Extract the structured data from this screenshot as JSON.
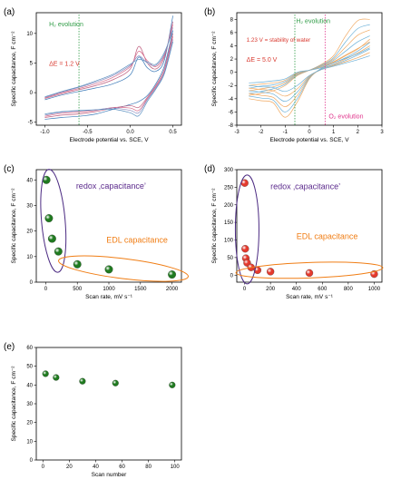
{
  "colors": {
    "green_marker": "#1f7a1f",
    "red_marker": "#e53a2e",
    "purple_ellipse": "#4b2a82",
    "orange_ellipse": "#f07d14",
    "green_line": "#2e9b45",
    "red_line": "#e0338b",
    "annotation_red": "#d9392f",
    "annotation_green": "#2e9b45",
    "annotation_purple": "#5b2a8c",
    "annotation_orange": "#f07d14",
    "cv_a": [
      "#3d7ab8",
      "#c06080",
      "#d86a8a",
      "#8d8dbf",
      "#5a90c0"
    ],
    "cv_b_orange": "#f0a860",
    "cv_b_blue": "#6bb0d8"
  },
  "chart_data": [
    {
      "panel": "(a)",
      "type": "line",
      "title": "",
      "xlabel": "Electrode potential vs. SCE, V",
      "ylabel": "Specific capacitance, F cm⁻²",
      "xlim": [
        -1.1,
        0.6
      ],
      "ylim": [
        -5.5,
        13.5
      ],
      "xticks": [
        -1.0,
        -0.5,
        0.0,
        0.5
      ],
      "xticklabels": [
        "-1.0",
        "-0.5",
        "0.0",
        "0.5"
      ],
      "yticks": [
        -5,
        0,
        5,
        10
      ],
      "yticklabels": [
        "-5",
        "0",
        "5",
        "10"
      ],
      "vline_x": -0.6,
      "annotations": [
        "H₂ evolution",
        "ΔE = 1.2 V"
      ],
      "series": [
        {
          "x": [
            -1.0,
            -0.8,
            -0.6,
            -0.4,
            -0.2,
            0.0,
            0.1,
            0.2,
            0.3,
            0.4,
            0.5
          ],
          "y_fwd": [
            -1.2,
            -0.4,
            0.2,
            0.8,
            1.5,
            3.0,
            6.0,
            4.2,
            3.6,
            5.5,
            13.0
          ],
          "y_rev": [
            -4.5,
            -4.2,
            -4.0,
            -3.6,
            -2.8,
            -2.0,
            -1.5,
            -0.5,
            1.5,
            4.5,
            10.5
          ]
        },
        {
          "x": [
            -1.0,
            -0.8,
            -0.6,
            -0.4,
            -0.2,
            0.0,
            0.1,
            0.2,
            0.3,
            0.4,
            0.5
          ],
          "y_fwd": [
            -1.0,
            -0.2,
            0.5,
            1.2,
            2.2,
            4.0,
            7.8,
            5.0,
            4.0,
            6.0,
            12.0
          ],
          "y_rev": [
            -4.2,
            -3.8,
            -3.6,
            -3.2,
            -2.6,
            -2.2,
            -2.5,
            -0.8,
            1.2,
            4.0,
            10.0
          ]
        },
        {
          "x": [
            -1.0,
            -0.8,
            -0.6,
            -0.4,
            -0.2,
            0.0,
            0.1,
            0.2,
            0.3,
            0.4,
            0.5
          ],
          "y_fwd": [
            -0.9,
            0.0,
            0.7,
            1.5,
            2.6,
            4.4,
            7.0,
            5.4,
            4.4,
            6.3,
            11.5
          ],
          "y_rev": [
            -4.0,
            -3.5,
            -3.3,
            -3.0,
            -2.5,
            -2.6,
            -3.0,
            -1.0,
            1.0,
            3.6,
            9.5
          ]
        },
        {
          "x": [
            -1.0,
            -0.8,
            -0.6,
            -0.4,
            -0.2,
            0.0,
            0.1,
            0.2,
            0.3,
            0.4,
            0.5
          ],
          "y_fwd": [
            -0.8,
            0.1,
            0.9,
            1.8,
            2.9,
            4.6,
            6.2,
            5.0,
            4.6,
            6.5,
            11.0
          ],
          "y_rev": [
            -3.8,
            -3.3,
            -3.1,
            -2.9,
            -2.6,
            -3.0,
            -3.4,
            -1.2,
            0.8,
            3.4,
            9.0
          ]
        },
        {
          "x": [
            -1.0,
            -0.8,
            -0.6,
            -0.4,
            -0.2,
            0.0,
            0.1,
            0.2,
            0.3,
            0.4,
            0.5
          ],
          "y_fwd": [
            -0.7,
            0.2,
            1.0,
            2.0,
            3.1,
            4.8,
            5.6,
            5.2,
            4.8,
            6.8,
            10.5
          ],
          "y_rev": [
            -3.6,
            -3.2,
            -3.0,
            -2.9,
            -2.8,
            -3.4,
            -3.9,
            -1.5,
            0.6,
            3.2,
            8.6
          ]
        }
      ]
    },
    {
      "panel": "(b)",
      "type": "line",
      "title": "",
      "xlabel": "Electrode potential vs. SCE, V",
      "ylabel": "Specific capacitance, F cm⁻²",
      "xlim": [
        -3,
        3
      ],
      "ylim": [
        -8,
        9
      ],
      "xticks": [
        -3,
        -2,
        -1,
        0,
        1,
        2,
        3
      ],
      "xticklabels": [
        "-3",
        "-2",
        "-1",
        "0",
        "1",
        "2",
        "3"
      ],
      "yticks": [
        -8,
        -6,
        -4,
        -2,
        0,
        2,
        4,
        6,
        8
      ],
      "yticklabels": [
        "-8",
        "-6",
        "-4",
        "-2",
        "0",
        "2",
        "4",
        "6",
        "8"
      ],
      "vlines_x": [
        -0.6,
        0.65
      ],
      "annotations": [
        "H₂ evolution",
        "1.23 V = stability of water",
        "ΔE = 5.0 V",
        "O₂ evolution"
      ],
      "series": [
        {
          "x": [
            -2.5,
            -2.0,
            -1.5,
            -1.0,
            -0.5,
            0.0,
            0.5,
            1.0,
            1.5,
            2.0,
            2.5
          ],
          "y_fwd": [
            -3.5,
            -3.2,
            -2.8,
            -2.0,
            -0.5,
            0.3,
            1.2,
            2.5,
            5.5,
            7.8,
            8.0
          ],
          "y_rev": [
            -4.0,
            -4.3,
            -4.6,
            -6.8,
            -4.5,
            -1.0,
            0.6,
            1.5,
            2.5,
            3.5,
            5.0
          ]
        },
        {
          "x": [
            -2.5,
            -2.0,
            -1.5,
            -1.0,
            -0.5,
            0.0,
            0.5,
            1.0,
            1.5,
            2.0,
            2.5
          ],
          "y_fwd": [
            -3.2,
            -2.9,
            -2.5,
            -1.8,
            -0.4,
            0.3,
            1.1,
            2.2,
            4.6,
            6.6,
            7.2
          ],
          "y_rev": [
            -3.6,
            -3.9,
            -4.2,
            -6.0,
            -4.0,
            -0.9,
            0.6,
            1.4,
            2.2,
            3.2,
            4.5
          ]
        },
        {
          "x": [
            -2.5,
            -2.0,
            -1.5,
            -1.0,
            -0.5,
            0.0,
            0.5,
            1.0,
            1.5,
            2.0,
            2.5
          ],
          "y_fwd": [
            -2.8,
            -2.5,
            -2.2,
            -1.6,
            -0.3,
            0.3,
            1.0,
            2.0,
            3.8,
            5.6,
            6.4
          ],
          "y_rev": [
            -3.2,
            -3.5,
            -3.8,
            -5.2,
            -3.5,
            -0.8,
            0.5,
            1.2,
            2.0,
            2.9,
            4.0
          ]
        },
        {
          "x": [
            -2.5,
            -2.0,
            -1.5,
            -1.0,
            -0.5,
            0.0,
            0.5,
            1.0,
            1.5,
            2.0,
            2.5
          ],
          "y_fwd": [
            -2.4,
            -2.1,
            -1.9,
            -1.4,
            -0.2,
            0.3,
            0.9,
            1.8,
            3.2,
            4.6,
            5.5
          ],
          "y_rev": [
            -2.8,
            -3.0,
            -3.3,
            -4.4,
            -3.0,
            -0.7,
            0.5,
            1.1,
            1.8,
            2.6,
            3.5
          ]
        },
        {
          "x": [
            -2.5,
            -2.0,
            -1.5,
            -1.0,
            -0.5,
            0.0,
            0.5,
            1.0,
            1.5,
            2.0,
            2.5
          ],
          "y_fwd": [
            -2.0,
            -1.8,
            -1.6,
            -1.2,
            -0.1,
            0.3,
            0.8,
            1.6,
            2.6,
            3.6,
            4.6
          ],
          "y_rev": [
            -2.4,
            -2.6,
            -2.8,
            -3.6,
            -2.5,
            -0.6,
            0.4,
            1.0,
            1.6,
            2.2,
            3.0
          ]
        },
        {
          "x": [
            -2.5,
            -2.0,
            -1.5,
            -1.0,
            -0.5,
            0.0,
            0.5,
            1.0,
            1.5,
            2.0,
            2.5
          ],
          "y_fwd": [
            -1.6,
            -1.5,
            -1.3,
            -1.0,
            0.0,
            0.3,
            0.7,
            1.4,
            2.1,
            2.8,
            3.7
          ],
          "y_rev": [
            -2.0,
            -2.2,
            -2.3,
            -2.9,
            -2.0,
            -0.5,
            0.4,
            0.9,
            1.4,
            1.9,
            2.5
          ]
        }
      ]
    },
    {
      "panel": "(c)",
      "type": "scatter",
      "title": "",
      "xlabel": "Scan rate, mV s⁻¹",
      "ylabel": "Specific capacitance, F cm⁻²",
      "xlim": [
        -150,
        2150
      ],
      "ylim": [
        0,
        44
      ],
      "xticks": [
        0,
        500,
        1000,
        1500,
        2000
      ],
      "xticklabels": [
        "0",
        "500",
        "1000",
        "1500",
        "2000"
      ],
      "yticks": [
        0,
        10,
        20,
        30,
        40
      ],
      "yticklabels": [
        "0",
        "10",
        "20",
        "30",
        "40"
      ],
      "x": [
        10,
        50,
        100,
        200,
        500,
        1000,
        2000
      ],
      "y": [
        40,
        25,
        17,
        12,
        7,
        5,
        3
      ],
      "annotations": [
        "redox ‚capacitance’",
        "EDL capacitance"
      ]
    },
    {
      "panel": "(d)",
      "type": "scatter",
      "title": "",
      "xlabel": "Scan rate, mV s⁻¹",
      "ylabel": "Specific capacitance, F cm⁻²",
      "xlim": [
        -60,
        1060
      ],
      "ylim": [
        -20,
        300
      ],
      "xticks": [
        0,
        200,
        400,
        600,
        800,
        1000
      ],
      "xticklabels": [
        "0",
        "200",
        "400",
        "600",
        "800",
        "1000"
      ],
      "yticks": [
        0,
        50,
        100,
        150,
        200,
        250,
        300
      ],
      "yticklabels": [
        "0",
        "50",
        "100",
        "150",
        "200",
        "250",
        "300"
      ],
      "x": [
        1,
        5,
        10,
        20,
        50,
        100,
        200,
        500,
        1000
      ],
      "y": [
        262,
        75,
        48,
        35,
        22,
        14,
        10,
        6,
        3
      ],
      "annotations": [
        "redox ‚capacitance’",
        "EDL capacitance"
      ]
    },
    {
      "panel": "(e)",
      "type": "scatter",
      "title": "",
      "xlabel": "Scan number",
      "ylabel": "Specific capacitance, F cm⁻²",
      "xlim": [
        -5,
        105
      ],
      "ylim": [
        0,
        60
      ],
      "xticks": [
        0,
        20,
        40,
        60,
        80,
        100
      ],
      "xticklabels": [
        "0",
        "20",
        "40",
        "60",
        "80",
        "100"
      ],
      "yticks": [
        0,
        10,
        20,
        30,
        40,
        50,
        60
      ],
      "yticklabels": [
        "0",
        "10",
        "20",
        "30",
        "40",
        "50",
        "60"
      ],
      "x": [
        2,
        10,
        30,
        55,
        98
      ],
      "y": [
        46,
        44,
        42,
        41,
        40
      ]
    }
  ]
}
